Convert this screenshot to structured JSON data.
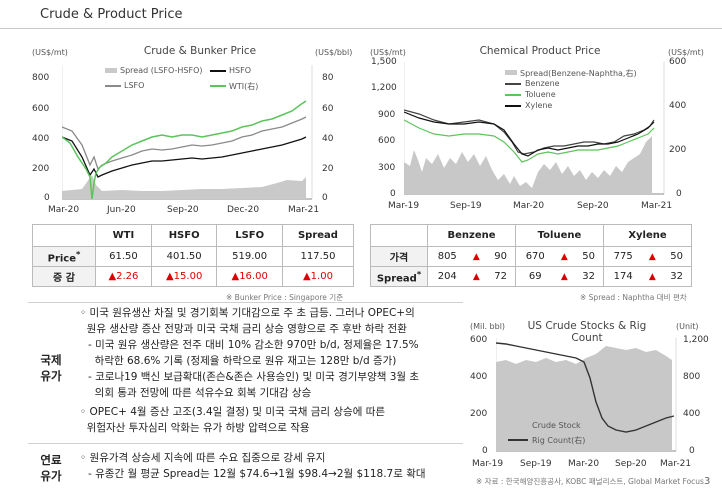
{
  "page": {
    "title": "Crude & Product Price",
    "page_number": "3"
  },
  "crude_chart": {
    "title": "Crude & Bunker Price",
    "left_unit": "(US$/mt)",
    "right_unit": "(US$/bbl)",
    "left_ticks": [
      "800",
      "600",
      "400",
      "200",
      "0"
    ],
    "right_ticks": [
      "80",
      "60",
      "40",
      "20",
      "0"
    ],
    "x_ticks": [
      "Mar-20",
      "Jun-20",
      "Sep-20",
      "Dec-20",
      "Mar-21"
    ],
    "legend": {
      "spread": "Spread (LSFO-HSFO)",
      "hsfo": "HSFO",
      "lsfo": "LSFO",
      "wti": "WTI(右)"
    }
  },
  "chem_chart": {
    "title": "Chemical Product Price",
    "left_unit": "(US$/mt)",
    "right_unit": "(US$/mt)",
    "left_ticks": [
      "1,500",
      "1,200",
      "900",
      "600",
      "300",
      "0"
    ],
    "right_ticks": [
      "600",
      "400",
      "200",
      "0"
    ],
    "x_ticks": [
      "Mar-19",
      "Sep-19",
      "Mar-20",
      "Sep-20",
      "Mar-21"
    ],
    "legend": {
      "spread": "Spread(Benzene-Naphtha,右)",
      "benzene": "Benzene",
      "toluene": "Toluene",
      "xylene": "Xylene"
    }
  },
  "crude_table": {
    "headers": [
      "WTI",
      "HSFO",
      "LSFO",
      "Spread"
    ],
    "row1_label": "Price",
    "row1_sup": "*",
    "row1": [
      "61.50",
      "401.50",
      "519.00",
      "117.50"
    ],
    "row2_label": "증 감",
    "row2": [
      "▲2.26",
      "▲15.00",
      "▲16.00",
      "▲1.00"
    ],
    "source": "※ Bunker Price : Singapore 기준"
  },
  "chem_table": {
    "headers": [
      "Benzene",
      "Toluene",
      "Xylene"
    ],
    "row1_label": "가격",
    "row1": [
      [
        "805",
        "▲",
        "90"
      ],
      [
        "670",
        "▲",
        "50"
      ],
      [
        "775",
        "▲",
        "50"
      ]
    ],
    "row2_label": "Spread",
    "row2_sup": "*",
    "row2": [
      [
        "204",
        "▲",
        "72"
      ],
      [
        "69",
        "▲",
        "32"
      ],
      [
        "174",
        "▲",
        "32"
      ]
    ],
    "source": "※ Spread : Naphtha 대비 편차"
  },
  "crude_section": {
    "label_line1": "국제",
    "label_line2": "유가",
    "bullets": [
      "◦ 미국 원유생산 차질 및 경기회복 기대감으로 주 초 급등. 그러나 OPEC+의",
      "  원유 생산량 증산 전망과 미국 국채 금리 상승 영향으로 주 후반 하락 전환",
      "- 미국 원유 생산량은 전주 대비 10% 감소한 970만 b/d, 정제율은 17.5%",
      "  하락한 68.6% 기록 (정제율 하락으로 원유 재고는 128만 b/d 증가)",
      "- 코로나19 백신 보급확대(존슨&존슨 사용승인) 및 미국 경기부양책 3월 초",
      "  의회 통과 전망에 따른 석유수요 회복 기대감 상승",
      "◦ OPEC+ 4월 증산 고조(3.4일 결정) 및 미국 국채 금리 상승에 따른",
      "  위험자산 투자심리 악화는 유가 하방 압력으로 작용"
    ]
  },
  "fuel_section": {
    "label_line1": "연료",
    "label_line2": "유가",
    "bullets": [
      "◦ 원유가격 상승세 지속에 따른 수요 집중으로 강세 유지",
      "- 유종간 월 평균 Spread는 12월 $74.6→1월 $98.4→2월 $118.7로 확대"
    ]
  },
  "stock_chart": {
    "title": "US Crude Stocks & Rig Count",
    "left_unit": "(Mil. bbl)",
    "right_unit": "(Unit)",
    "left_ticks": [
      "600",
      "400",
      "200",
      "0"
    ],
    "right_ticks": [
      "1,200",
      "800",
      "400",
      "0"
    ],
    "x_ticks": [
      "Mar-19",
      "Sep-19",
      "Mar-20",
      "Sep-20",
      "Mar-21"
    ],
    "legend": {
      "stock": "Crude Stock",
      "rig": "Rig Count(右)"
    },
    "source": "※ 자료 : 한국해양진흥공사, KOBC 패널리스트, Global Market Focus"
  },
  "colors": {
    "wti": "#5cc45c",
    "hsfo": "#111111",
    "lsfo": "#8a8a8a",
    "spread_fill": "#c9c9c9",
    "up_arrow": "#dd0000",
    "rig": "#333333"
  }
}
